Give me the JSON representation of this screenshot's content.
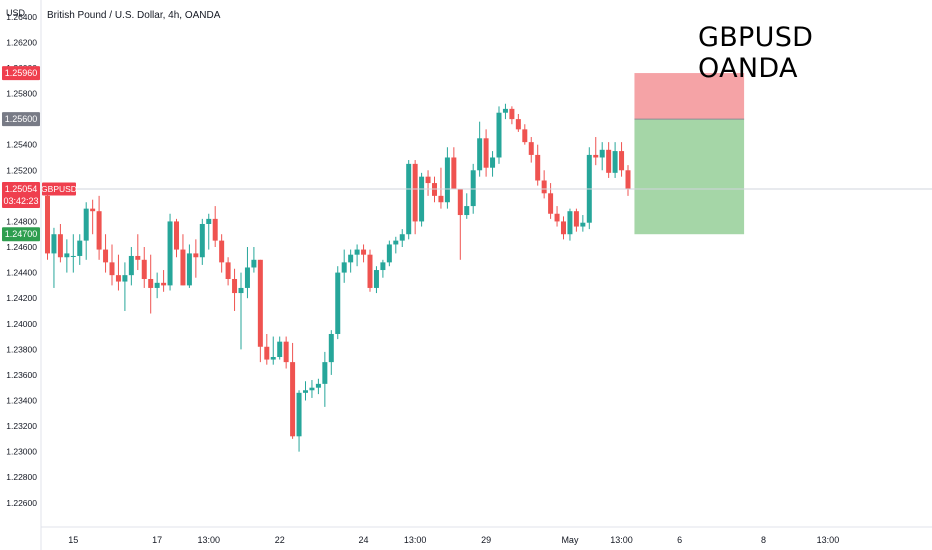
{
  "header": {
    "currency_label": "USD",
    "symbol_title": "British Pound / U.S. Dollar, 4h, OANDA"
  },
  "overlay": {
    "line1": "GBPUSD",
    "line2": "OANDA"
  },
  "price_tags": {
    "stop": "1.25960",
    "entry": "1.25600",
    "current_price": "1.25054",
    "countdown": "03:42:23",
    "symbol": "GBPUSD",
    "target": "1.24700"
  },
  "colors": {
    "up": "#26a69a",
    "down": "#ef5350",
    "stop_zone": "#f5a3a6",
    "target_zone": "#a5d6a7",
    "entry_tag": "#787b86",
    "stop_tag": "#ef3f4e",
    "target_tag": "#2e9e4f"
  },
  "chart_data": {
    "type": "candlestick",
    "title": "British Pound / U.S. Dollar, 4h, OANDA",
    "y_unit": "USD",
    "ylim": [
      1.2245,
      1.265
    ],
    "y_ticks": [
      "1.26400",
      "1.26200",
      "1.26000",
      "1.25800",
      "1.25600",
      "1.25400",
      "1.25200",
      "1.25000",
      "1.24800",
      "1.24600",
      "1.24400",
      "1.24200",
      "1.24000",
      "1.23800",
      "1.23600",
      "1.23400",
      "1.23200",
      "1.23000",
      "1.22800",
      "1.22600"
    ],
    "x_ticks": [
      {
        "i": 4,
        "label": "15"
      },
      {
        "i": 17,
        "label": "17"
      },
      {
        "i": 25,
        "label": "13:00"
      },
      {
        "i": 36,
        "label": "22"
      },
      {
        "i": 49,
        "label": "24"
      },
      {
        "i": 57,
        "label": "13:00"
      },
      {
        "i": 68,
        "label": "29"
      },
      {
        "i": 81,
        "label": "May"
      },
      {
        "i": 89,
        "label": "13:00"
      },
      {
        "i": 98,
        "label": "6"
      },
      {
        "i": 111,
        "label": "8"
      },
      {
        "i": 121,
        "label": "13:00"
      }
    ],
    "grid": false,
    "candles": [
      {
        "o": 1.25,
        "h": 1.2502,
        "l": 1.245,
        "c": 1.2455
      },
      {
        "o": 1.2455,
        "h": 1.2475,
        "l": 1.2428,
        "c": 1.247
      },
      {
        "o": 1.247,
        "h": 1.2478,
        "l": 1.2448,
        "c": 1.2452
      },
      {
        "o": 1.2452,
        "h": 1.2466,
        "l": 1.244,
        "c": 1.2455
      },
      {
        "o": 1.2453,
        "h": 1.247,
        "l": 1.244,
        "c": 1.2453
      },
      {
        "o": 1.2453,
        "h": 1.247,
        "l": 1.2446,
        "c": 1.2465
      },
      {
        "o": 1.2465,
        "h": 1.2495,
        "l": 1.245,
        "c": 1.249
      },
      {
        "o": 1.249,
        "h": 1.2497,
        "l": 1.247,
        "c": 1.2488
      },
      {
        "o": 1.2488,
        "h": 1.25,
        "l": 1.245,
        "c": 1.2458
      },
      {
        "o": 1.2458,
        "h": 1.247,
        "l": 1.244,
        "c": 1.2448
      },
      {
        "o": 1.2448,
        "h": 1.2462,
        "l": 1.243,
        "c": 1.2438
      },
      {
        "o": 1.2438,
        "h": 1.2454,
        "l": 1.2426,
        "c": 1.2433
      },
      {
        "o": 1.2433,
        "h": 1.2448,
        "l": 1.241,
        "c": 1.2438
      },
      {
        "o": 1.2438,
        "h": 1.246,
        "l": 1.243,
        "c": 1.2453
      },
      {
        "o": 1.2453,
        "h": 1.247,
        "l": 1.2442,
        "c": 1.245
      },
      {
        "o": 1.245,
        "h": 1.246,
        "l": 1.2428,
        "c": 1.2435
      },
      {
        "o": 1.2435,
        "h": 1.2454,
        "l": 1.2408,
        "c": 1.2428
      },
      {
        "o": 1.2428,
        "h": 1.244,
        "l": 1.242,
        "c": 1.2432
      },
      {
        "o": 1.2432,
        "h": 1.2442,
        "l": 1.2425,
        "c": 1.243
      },
      {
        "o": 1.243,
        "h": 1.2486,
        "l": 1.2426,
        "c": 1.248
      },
      {
        "o": 1.248,
        "h": 1.2482,
        "l": 1.2452,
        "c": 1.2458
      },
      {
        "o": 1.2458,
        "h": 1.247,
        "l": 1.243,
        "c": 1.243
      },
      {
        "o": 1.243,
        "h": 1.2462,
        "l": 1.2428,
        "c": 1.2455
      },
      {
        "o": 1.2455,
        "h": 1.2466,
        "l": 1.2436,
        "c": 1.2452
      },
      {
        "o": 1.2452,
        "h": 1.2482,
        "l": 1.2446,
        "c": 1.2478
      },
      {
        "o": 1.2478,
        "h": 1.2486,
        "l": 1.2458,
        "c": 1.2482
      },
      {
        "o": 1.2482,
        "h": 1.2492,
        "l": 1.246,
        "c": 1.2465
      },
      {
        "o": 1.2465,
        "h": 1.247,
        "l": 1.244,
        "c": 1.2448
      },
      {
        "o": 1.2448,
        "h": 1.2452,
        "l": 1.243,
        "c": 1.2435
      },
      {
        "o": 1.2435,
        "h": 1.2443,
        "l": 1.241,
        "c": 1.2424
      },
      {
        "o": 1.2424,
        "h": 1.244,
        "l": 1.238,
        "c": 1.2428
      },
      {
        "o": 1.2428,
        "h": 1.246,
        "l": 1.242,
        "c": 1.2444
      },
      {
        "o": 1.2444,
        "h": 1.246,
        "l": 1.244,
        "c": 1.245
      },
      {
        "o": 1.245,
        "h": 1.245,
        "l": 1.237,
        "c": 1.2382
      },
      {
        "o": 1.2382,
        "h": 1.2392,
        "l": 1.2368,
        "c": 1.2372
      },
      {
        "o": 1.2372,
        "h": 1.239,
        "l": 1.2368,
        "c": 1.2374
      },
      {
        "o": 1.2374,
        "h": 1.239,
        "l": 1.2372,
        "c": 1.2386
      },
      {
        "o": 1.2386,
        "h": 1.239,
        "l": 1.2365,
        "c": 1.237
      },
      {
        "o": 1.237,
        "h": 1.2385,
        "l": 1.231,
        "c": 1.2312
      },
      {
        "o": 1.2312,
        "h": 1.2348,
        "l": 1.23,
        "c": 1.2346
      },
      {
        "o": 1.2346,
        "h": 1.2355,
        "l": 1.234,
        "c": 1.2348
      },
      {
        "o": 1.2348,
        "h": 1.2356,
        "l": 1.2342,
        "c": 1.235
      },
      {
        "o": 1.235,
        "h": 1.2357,
        "l": 1.2345,
        "c": 1.2353
      },
      {
        "o": 1.2353,
        "h": 1.2378,
        "l": 1.2335,
        "c": 1.237
      },
      {
        "o": 1.237,
        "h": 1.2395,
        "l": 1.236,
        "c": 1.2392
      },
      {
        "o": 1.2392,
        "h": 1.2445,
        "l": 1.2388,
        "c": 1.244
      },
      {
        "o": 1.244,
        "h": 1.2458,
        "l": 1.2432,
        "c": 1.2448
      },
      {
        "o": 1.2448,
        "h": 1.2458,
        "l": 1.244,
        "c": 1.2454
      },
      {
        "o": 1.2454,
        "h": 1.2462,
        "l": 1.2445,
        "c": 1.2458
      },
      {
        "o": 1.2458,
        "h": 1.2462,
        "l": 1.2448,
        "c": 1.2454
      },
      {
        "o": 1.2454,
        "h": 1.2458,
        "l": 1.2425,
        "c": 1.2428
      },
      {
        "o": 1.2428,
        "h": 1.2445,
        "l": 1.2424,
        "c": 1.2442
      },
      {
        "o": 1.2442,
        "h": 1.245,
        "l": 1.2436,
        "c": 1.2448
      },
      {
        "o": 1.2448,
        "h": 1.2465,
        "l": 1.2445,
        "c": 1.2462
      },
      {
        "o": 1.2462,
        "h": 1.2468,
        "l": 1.2455,
        "c": 1.2465
      },
      {
        "o": 1.2465,
        "h": 1.2474,
        "l": 1.246,
        "c": 1.247
      },
      {
        "o": 1.247,
        "h": 1.2528,
        "l": 1.2466,
        "c": 1.2525
      },
      {
        "o": 1.2525,
        "h": 1.2528,
        "l": 1.247,
        "c": 1.248
      },
      {
        "o": 1.248,
        "h": 1.2518,
        "l": 1.2476,
        "c": 1.2515
      },
      {
        "o": 1.2515,
        "h": 1.252,
        "l": 1.25,
        "c": 1.251
      },
      {
        "o": 1.251,
        "h": 1.2515,
        "l": 1.2495,
        "c": 1.25
      },
      {
        "o": 1.25,
        "h": 1.2522,
        "l": 1.249,
        "c": 1.2495
      },
      {
        "o": 1.2495,
        "h": 1.2538,
        "l": 1.249,
        "c": 1.253
      },
      {
        "o": 1.253,
        "h": 1.2538,
        "l": 1.2505,
        "c": 1.2505
      },
      {
        "o": 1.2505,
        "h": 1.2505,
        "l": 1.245,
        "c": 1.2485
      },
      {
        "o": 1.2485,
        "h": 1.2502,
        "l": 1.2482,
        "c": 1.2492
      },
      {
        "o": 1.2492,
        "h": 1.2525,
        "l": 1.2486,
        "c": 1.252
      },
      {
        "o": 1.252,
        "h": 1.2558,
        "l": 1.2515,
        "c": 1.2545
      },
      {
        "o": 1.2545,
        "h": 1.2552,
        "l": 1.2515,
        "c": 1.2522
      },
      {
        "o": 1.2522,
        "h": 1.2535,
        "l": 1.2515,
        "c": 1.253
      },
      {
        "o": 1.253,
        "h": 1.257,
        "l": 1.2525,
        "c": 1.2565
      },
      {
        "o": 1.2565,
        "h": 1.2572,
        "l": 1.256,
        "c": 1.2568
      },
      {
        "o": 1.2568,
        "h": 1.257,
        "l": 1.2556,
        "c": 1.256
      },
      {
        "o": 1.256,
        "h": 1.2564,
        "l": 1.255,
        "c": 1.2552
      },
      {
        "o": 1.2552,
        "h": 1.2556,
        "l": 1.254,
        "c": 1.2542
      },
      {
        "o": 1.2542,
        "h": 1.2546,
        "l": 1.2526,
        "c": 1.2532
      },
      {
        "o": 1.2532,
        "h": 1.254,
        "l": 1.2508,
        "c": 1.2512
      },
      {
        "o": 1.2512,
        "h": 1.252,
        "l": 1.2498,
        "c": 1.2502
      },
      {
        "o": 1.2502,
        "h": 1.251,
        "l": 1.2482,
        "c": 1.2486
      },
      {
        "o": 1.2486,
        "h": 1.2492,
        "l": 1.2476,
        "c": 1.248
      },
      {
        "o": 1.248,
        "h": 1.2484,
        "l": 1.2466,
        "c": 1.247
      },
      {
        "o": 1.247,
        "h": 1.249,
        "l": 1.2465,
        "c": 1.2488
      },
      {
        "o": 1.2488,
        "h": 1.249,
        "l": 1.2472,
        "c": 1.2476
      },
      {
        "o": 1.2476,
        "h": 1.2485,
        "l": 1.2472,
        "c": 1.2479
      },
      {
        "o": 1.2479,
        "h": 1.2538,
        "l": 1.2474,
        "c": 1.2532
      },
      {
        "o": 1.2532,
        "h": 1.2546,
        "l": 1.2524,
        "c": 1.253
      },
      {
        "o": 1.253,
        "h": 1.2542,
        "l": 1.252,
        "c": 1.2536
      },
      {
        "o": 1.2536,
        "h": 1.2542,
        "l": 1.2514,
        "c": 1.2518
      },
      {
        "o": 1.2518,
        "h": 1.2542,
        "l": 1.2514,
        "c": 1.2535
      },
      {
        "o": 1.2535,
        "h": 1.2542,
        "l": 1.2515,
        "c": 1.252
      },
      {
        "o": 1.252,
        "h": 1.2524,
        "l": 1.25,
        "c": 1.2505
      }
    ]
  },
  "position": {
    "entry": 1.256,
    "stop": 1.2596,
    "target": 1.247,
    "start_index": 91,
    "end_index": 108
  },
  "current_price_value": 1.25054
}
